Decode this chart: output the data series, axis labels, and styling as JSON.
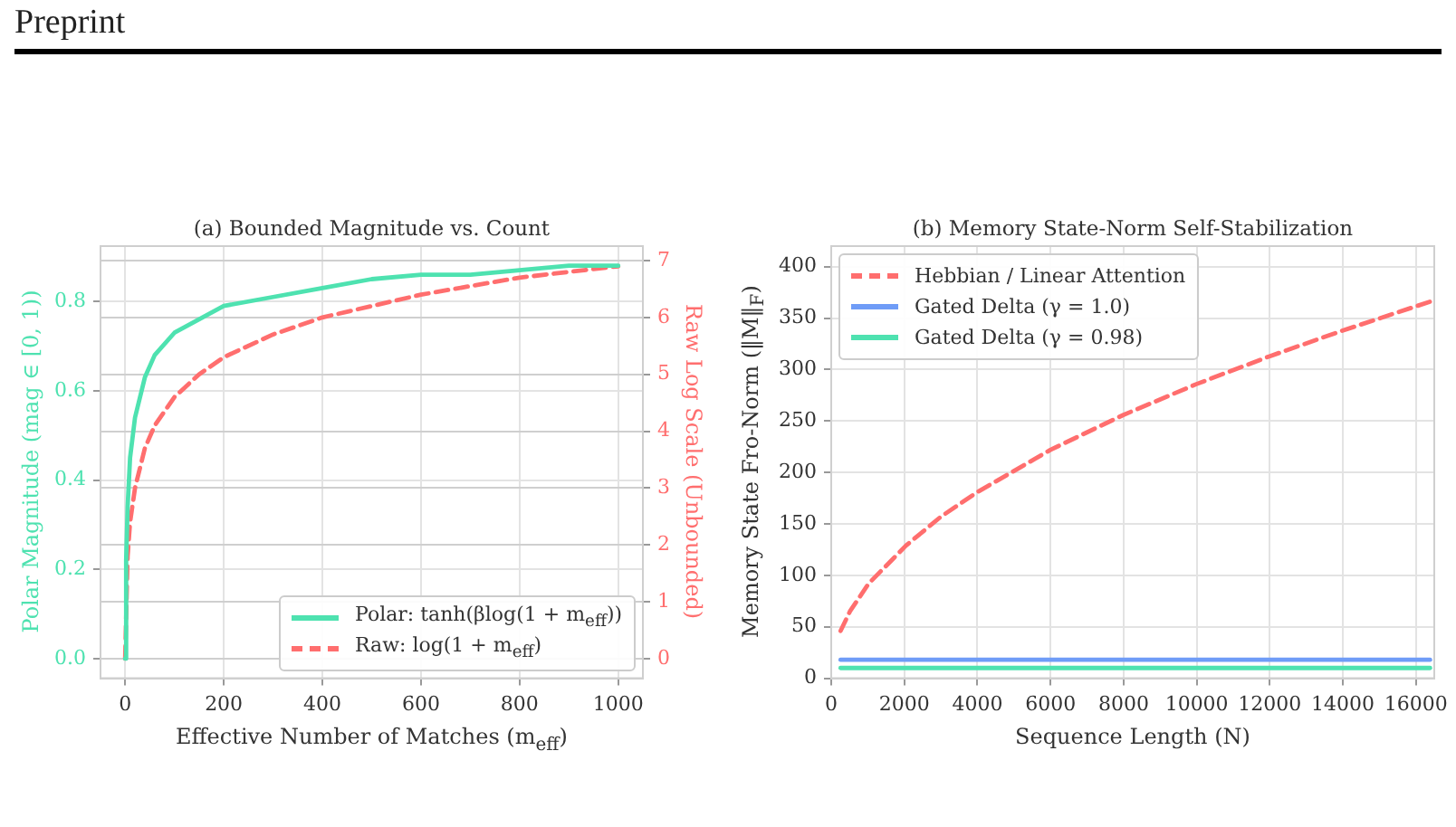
{
  "chart_data": [
    {
      "type": "line",
      "title": "(a) Bounded Magnitude vs. Count",
      "xlabel": "Effective Number of Matches (m$_{eff}$)",
      "ylabel": "Polar Magnitude (mag ∈ [0, 1))",
      "y2label": "Raw Log Scale (Unbounded)",
      "annotations": [
        "Preprint"
      ],
      "series": [
        {
          "name": "Polar: tanh(βlog(1 + m$_{eff}$))",
          "color": "#4ee2b0",
          "line_style": "solid",
          "x": [
            0,
            2,
            5,
            10,
            20,
            40,
            60,
            100,
            150,
            200,
            300,
            400,
            500,
            600,
            700,
            800,
            900,
            1000
          ],
          "values": [
            0,
            0.22,
            0.34,
            0.45,
            0.54,
            0.63,
            0.68,
            0.73,
            0.76,
            0.79,
            0.81,
            0.83,
            0.85,
            0.86,
            0.86,
            0.87,
            0.88,
            0.88
          ]
        },
        {
          "name": "Raw: log(1 + m$_{eff}$)",
          "color": "#ff6e6e",
          "line_style": "dashed",
          "axis": "y2",
          "x": [
            0,
            5,
            10,
            20,
            40,
            60,
            100,
            150,
            200,
            300,
            400,
            500,
            600,
            700,
            800,
            900,
            1000
          ],
          "values": [
            0,
            1.8,
            2.4,
            3.0,
            3.7,
            4.1,
            4.6,
            5.0,
            5.3,
            5.7,
            6.0,
            6.2,
            6.4,
            6.55,
            6.7,
            6.8,
            6.9
          ]
        }
      ],
      "xlim": [
        -50,
        1050
      ],
      "xticks": [
        0,
        200,
        400,
        600,
        800,
        1000
      ],
      "ylim": [
        -0.044,
        0.924
      ],
      "yticks": [
        {
          "value": 0,
          "label": "0.0"
        },
        0.2,
        0.4,
        0.6,
        0.8
      ],
      "y2lim": [
        -0.345,
        7.254
      ],
      "y2ticks": [
        0,
        1,
        2,
        3,
        4,
        5,
        6,
        7
      ],
      "grid": true,
      "legend": "bottom right"
    },
    {
      "type": "line",
      "title": "(b) Memory State-Norm Self-Stabilization",
      "xlabel": "Sequence Length (N)",
      "ylabel": "Memory State Fro-Norm (‖M‖$_{F}$)",
      "series": [
        {
          "name": "Hebbian / Linear Attention",
          "color": "#ff6e6e",
          "line_style": "dashed",
          "x": [
            256,
            512,
            1024,
            2048,
            3000,
            4000,
            6000,
            8000,
            10000,
            12000,
            14000,
            16384
          ],
          "values": [
            46,
            65,
            92,
            129,
            157,
            181,
            222,
            256,
            286,
            313,
            338,
            366
          ]
        },
        {
          "name": "Gated Delta (γ = 1.0)",
          "color": "#6f9cf7",
          "line_style": "solid",
          "x": [
            256,
            16384
          ],
          "values": [
            18,
            18
          ]
        },
        {
          "name": "Gated Delta (γ = 0.98)",
          "color": "#4ee2b0",
          "line_style": "solid",
          "x": [
            256,
            16384
          ],
          "values": [
            10,
            10
          ]
        }
      ],
      "xlim": [
        0,
        16500
      ],
      "xticks": [
        0,
        2000,
        4000,
        6000,
        8000,
        10000,
        12000,
        14000,
        16000
      ],
      "ylim": [
        0,
        420
      ],
      "yticks": [
        0,
        50,
        100,
        150,
        200,
        250,
        300,
        350,
        400
      ],
      "grid": true,
      "legend": "top left"
    }
  ]
}
